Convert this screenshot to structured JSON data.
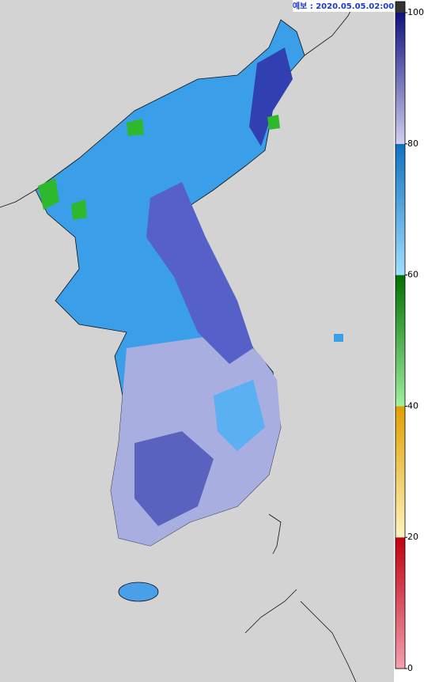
{
  "header": {
    "label": "예보 : 2020.05.05.02:00"
  },
  "colorbar": {
    "lim": [
      0,
      100
    ],
    "ticks": [
      0,
      20,
      40,
      60,
      80,
      100
    ],
    "colors": [
      [
        "#f4a0b0",
        "#c00010"
      ],
      [
        "#fff4c0",
        "#e0a000"
      ],
      [
        "#a0f0a0",
        "#007000"
      ],
      [
        "#a0e0ff",
        "#1070c0"
      ],
      [
        "#d0d0f0",
        "#101080"
      ]
    ],
    "cap": "#333333"
  }
}
